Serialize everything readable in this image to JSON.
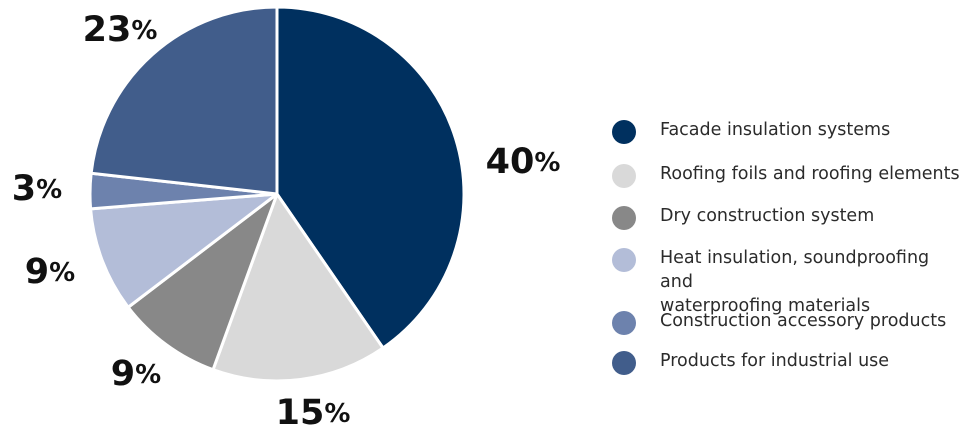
{
  "chart_data": {
    "type": "pie",
    "slices": [
      {
        "label": "Facade insulation systems",
        "value": 40,
        "display": "40%",
        "color": "#00305f"
      },
      {
        "label": "Roofing foils and roofing elements",
        "value": 15,
        "display": "15%",
        "color": "#d9d9d9"
      },
      {
        "label": "Dry construction system",
        "value": 9,
        "display": "9%",
        "color": "#888888"
      },
      {
        "label": "Heat insulation, soundproofing and waterproofing materials",
        "value": 9,
        "display": "9%",
        "color": "#b3bdd8"
      },
      {
        "label": "Construction accessory products",
        "value": 3,
        "display": "3%",
        "color": "#6d82ad"
      },
      {
        "label": "Products for industrial use",
        "value": 23,
        "display": "23%",
        "color": "#415d8b"
      }
    ],
    "start_angle": "12 o'clock",
    "direction": "clockwise",
    "legend_position": "right"
  },
  "legend": {
    "items": [
      {
        "lines": [
          "Facade insulation systems"
        ],
        "color": "#00305f"
      },
      {
        "lines": [
          "Roofing foils and roofing elements"
        ],
        "color": "#d9d9d9"
      },
      {
        "lines": [
          "Dry construction system"
        ],
        "color": "#888888"
      },
      {
        "lines": [
          "Heat insulation, soundproofing and",
          "waterproofing materials"
        ],
        "color": "#b3bdd8"
      },
      {
        "lines": [
          "Construction accessory products"
        ],
        "color": "#6d82ad"
      },
      {
        "lines": [
          "Products for industrial use"
        ],
        "color": "#415d8b"
      }
    ]
  }
}
